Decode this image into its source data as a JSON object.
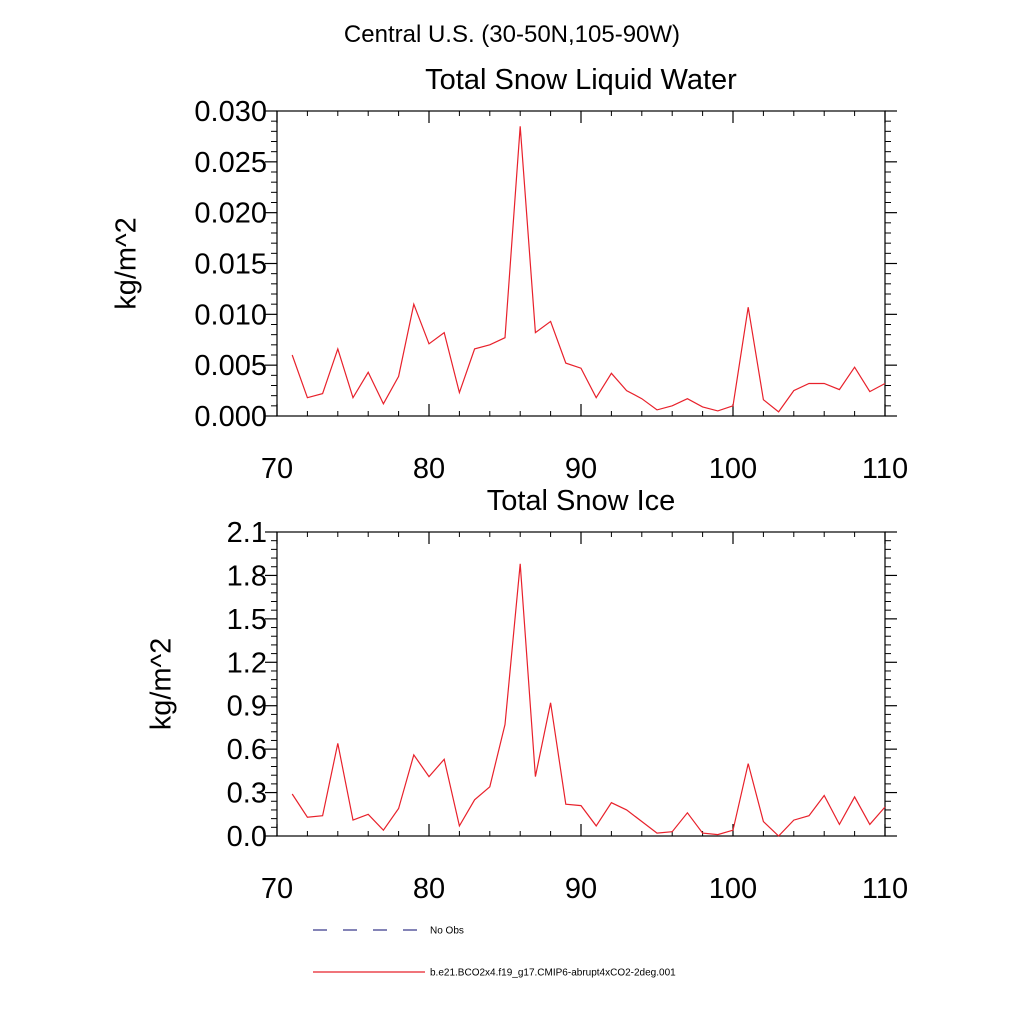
{
  "page_title": "Central U.S. (30-50N,105-90W)",
  "legend": {
    "entries": [
      {
        "label": "No Obs",
        "style": "dashed",
        "color": "#3a3a8c"
      },
      {
        "label": "b.e21.BCO2x4.f19_g17.CMIP6-abrupt4xCO2-2deg.001",
        "style": "solid",
        "color": "#e8212b"
      }
    ]
  },
  "chart_data": [
    {
      "type": "line",
      "title": "Total Snow Liquid Water",
      "xlabel": "",
      "ylabel": "kg/m^2",
      "xlim": [
        70,
        110
      ],
      "ylim": [
        0,
        0.03
      ],
      "x_ticks": [
        70,
        80,
        90,
        100,
        110
      ],
      "x_tick_labels": [
        "70",
        "80",
        "90",
        "100",
        "110"
      ],
      "y_ticks": [
        0,
        0.005,
        0.01,
        0.015,
        0.02,
        0.025,
        0.03
      ],
      "y_tick_labels": [
        "0.000",
        "0.005",
        "0.010",
        "0.015",
        "0.020",
        "0.025",
        "0.030"
      ],
      "series": [
        {
          "name": "b.e21.BCO2x4.f19_g17.CMIP6-abrupt4xCO2-2deg.001",
          "color": "#e8212b",
          "x": [
            71,
            72,
            73,
            74,
            75,
            76,
            77,
            78,
            79,
            80,
            81,
            82,
            83,
            84,
            85,
            86,
            87,
            88,
            89,
            90,
            91,
            92,
            93,
            94,
            95,
            96,
            97,
            98,
            99,
            100,
            101,
            102,
            103,
            104,
            105,
            106,
            107,
            108,
            109,
            110
          ],
          "values": [
            0.006,
            0.0018,
            0.0022,
            0.0066,
            0.0018,
            0.0043,
            0.0012,
            0.0039,
            0.011,
            0.0071,
            0.0082,
            0.0023,
            0.0066,
            0.007,
            0.0077,
            0.0285,
            0.0082,
            0.0093,
            0.0052,
            0.0047,
            0.0018,
            0.0042,
            0.0025,
            0.0017,
            0.0006,
            0.001,
            0.0017,
            0.0009,
            0.0005,
            0.001,
            0.0107,
            0.0016,
            0.0004,
            0.0025,
            0.0032,
            0.0032,
            0.0026,
            0.0048,
            0.0024,
            0.0032
          ]
        }
      ]
    },
    {
      "type": "line",
      "title": "Total Snow Ice",
      "xlabel": "",
      "ylabel": "kg/m^2",
      "xlim": [
        70,
        110
      ],
      "ylim": [
        0,
        2.1
      ],
      "x_ticks": [
        70,
        80,
        90,
        100,
        110
      ],
      "x_tick_labels": [
        "70",
        "80",
        "90",
        "100",
        "110"
      ],
      "y_ticks": [
        0,
        0.3,
        0.6,
        0.9,
        1.2,
        1.5,
        1.8,
        2.1
      ],
      "y_tick_labels": [
        "0.0",
        "0.3",
        "0.6",
        "0.9",
        "1.2",
        "1.5",
        "1.8",
        "2.1"
      ],
      "series": [
        {
          "name": "b.e21.BCO2x4.f19_g17.CMIP6-abrupt4xCO2-2deg.001",
          "color": "#e8212b",
          "x": [
            71,
            72,
            73,
            74,
            75,
            76,
            77,
            78,
            79,
            80,
            81,
            82,
            83,
            84,
            85,
            86,
            87,
            88,
            89,
            90,
            91,
            92,
            93,
            94,
            95,
            96,
            97,
            98,
            99,
            100,
            101,
            102,
            103,
            104,
            105,
            106,
            107,
            108,
            109,
            110
          ],
          "values": [
            0.29,
            0.13,
            0.14,
            0.64,
            0.11,
            0.15,
            0.04,
            0.19,
            0.56,
            0.41,
            0.53,
            0.07,
            0.25,
            0.34,
            0.77,
            1.88,
            0.41,
            0.92,
            0.22,
            0.21,
            0.07,
            0.23,
            0.18,
            0.1,
            0.02,
            0.03,
            0.16,
            0.02,
            0.01,
            0.04,
            0.5,
            0.1,
            0.0,
            0.11,
            0.14,
            0.28,
            0.08,
            0.27,
            0.08,
            0.2
          ]
        }
      ]
    }
  ]
}
